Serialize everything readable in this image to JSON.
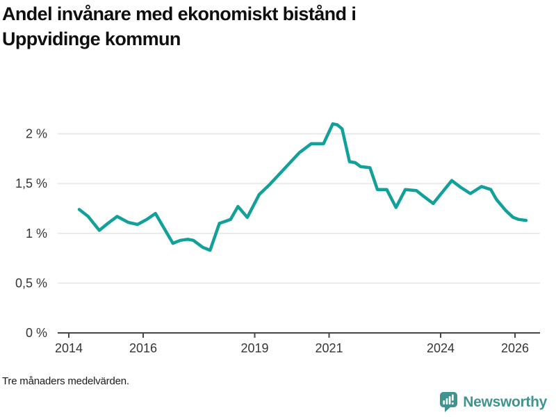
{
  "header": {
    "title_line1": "Andel invånare med ekonomiskt bistånd i",
    "title_line2": "Uppvidinge kommun"
  },
  "footer": {
    "note": "Tre månaders medelvärden.",
    "brand": "Newsworthy"
  },
  "colors": {
    "line": "#12a09a",
    "brand": "#3f948f",
    "grid": "#e3e3e3",
    "axis": "#474747",
    "tick_text": "#353535"
  },
  "chart_data": {
    "type": "line",
    "title": "Andel invånare med ekonomiskt bistånd i Uppvidinge kommun",
    "xlabel": "",
    "ylabel": "",
    "unit": "%",
    "grid": "horizontal",
    "legend": "none",
    "xlim": [
      2013.7,
      2026.67
    ],
    "ylim": [
      0,
      2.2
    ],
    "x_ticks": [
      {
        "value": 2014,
        "label": "2014"
      },
      {
        "value": 2016,
        "label": "2016"
      },
      {
        "value": 2019,
        "label": "2019"
      },
      {
        "value": 2021,
        "label": "2021"
      },
      {
        "value": 2024,
        "label": "2024"
      },
      {
        "value": 2026,
        "label": "2026"
      }
    ],
    "y_ticks": [
      {
        "value": 0,
        "label": "0 %"
      },
      {
        "value": 0.5,
        "label": "0,5 %"
      },
      {
        "value": 1,
        "label": "1 %"
      },
      {
        "value": 1.5,
        "label": "1,5 %"
      },
      {
        "value": 2,
        "label": "2 %"
      }
    ],
    "series": [
      {
        "name": "Andel invånare med ekonomiskt bistånd (%)",
        "points": [
          [
            2014.28,
            1.24
          ],
          [
            2014.52,
            1.17
          ],
          [
            2014.82,
            1.03
          ],
          [
            2015.05,
            1.1
          ],
          [
            2015.3,
            1.17
          ],
          [
            2015.6,
            1.11
          ],
          [
            2015.85,
            1.09
          ],
          [
            2016.1,
            1.14
          ],
          [
            2016.33,
            1.2
          ],
          [
            2016.58,
            1.04
          ],
          [
            2016.8,
            0.9
          ],
          [
            2017.0,
            0.93
          ],
          [
            2017.2,
            0.94
          ],
          [
            2017.35,
            0.93
          ],
          [
            2017.6,
            0.86
          ],
          [
            2017.8,
            0.83
          ],
          [
            2018.05,
            1.1
          ],
          [
            2018.2,
            1.12
          ],
          [
            2018.35,
            1.14
          ],
          [
            2018.55,
            1.27
          ],
          [
            2018.8,
            1.16
          ],
          [
            2019.12,
            1.39
          ],
          [
            2019.4,
            1.49
          ],
          [
            2019.8,
            1.65
          ],
          [
            2020.2,
            1.81
          ],
          [
            2020.52,
            1.9
          ],
          [
            2020.85,
            1.9
          ],
          [
            2021.1,
            2.1
          ],
          [
            2021.22,
            2.09
          ],
          [
            2021.35,
            2.05
          ],
          [
            2021.55,
            1.72
          ],
          [
            2021.7,
            1.71
          ],
          [
            2021.85,
            1.67
          ],
          [
            2022.1,
            1.66
          ],
          [
            2022.3,
            1.44
          ],
          [
            2022.55,
            1.44
          ],
          [
            2022.8,
            1.26
          ],
          [
            2023.05,
            1.44
          ],
          [
            2023.35,
            1.43
          ],
          [
            2023.55,
            1.37
          ],
          [
            2023.8,
            1.3
          ],
          [
            2024.3,
            1.53
          ],
          [
            2024.55,
            1.46
          ],
          [
            2024.8,
            1.4
          ],
          [
            2025.1,
            1.47
          ],
          [
            2025.35,
            1.44
          ],
          [
            2025.5,
            1.34
          ],
          [
            2025.75,
            1.23
          ],
          [
            2025.95,
            1.16
          ],
          [
            2026.1,
            1.14
          ],
          [
            2026.3,
            1.13
          ]
        ]
      }
    ],
    "footnote": "Tre månaders medelvärden."
  }
}
